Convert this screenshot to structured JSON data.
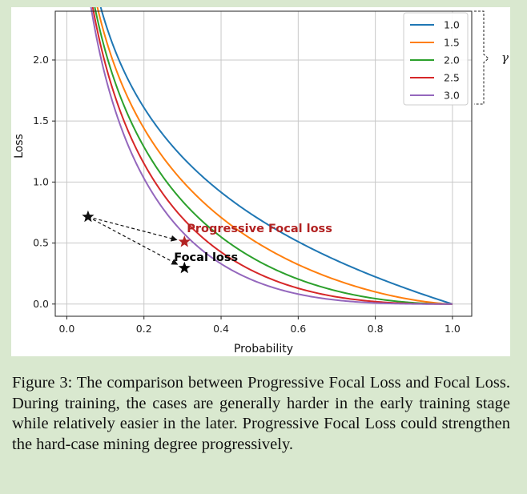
{
  "chart_data": {
    "type": "line",
    "xlabel": "Probability",
    "ylabel": "Loss",
    "xlim": [
      -0.03,
      1.05
    ],
    "ylim": [
      -0.1,
      2.4
    ],
    "xticks": [
      "0.0",
      "0.2",
      "0.4",
      "0.6",
      "0.8",
      "1.0"
    ],
    "yticks": [
      "0.0",
      "0.5",
      "1.0",
      "1.5",
      "2.0"
    ],
    "grid": true,
    "legend_position": "top-right",
    "legend_group_label": "γ",
    "series": [
      {
        "name": "1.0",
        "gamma": 1.0,
        "color": "#1f77b4"
      },
      {
        "name": "1.5",
        "gamma": 1.5,
        "color": "#ff7f0e"
      },
      {
        "name": "2.0",
        "gamma": 2.0,
        "color": "#2ca02c"
      },
      {
        "name": "2.5",
        "gamma": 2.5,
        "color": "#d62728"
      },
      {
        "name": "3.0",
        "gamma": 3.0,
        "color": "#9467bd"
      }
    ],
    "x_range": [
      0.01,
      1.0
    ],
    "annotations": [
      {
        "id": "pfl",
        "text": "Progressive Focal loss",
        "x": 0.305,
        "y": 0.51,
        "color": "#b22222"
      },
      {
        "id": "fl",
        "text": "Focal loss",
        "x": 0.305,
        "y": 0.295,
        "color": "#000000"
      }
    ],
    "start_marker": {
      "x": 0.055,
      "y": 0.715
    }
  },
  "caption": "Figure 3: The comparison between Progressive Focal Loss and Focal Loss. During training, the cases are generally harder in the early training stage while relatively easier in the later. Progressive Focal Loss could strengthen the hard-case mining degree progressively."
}
